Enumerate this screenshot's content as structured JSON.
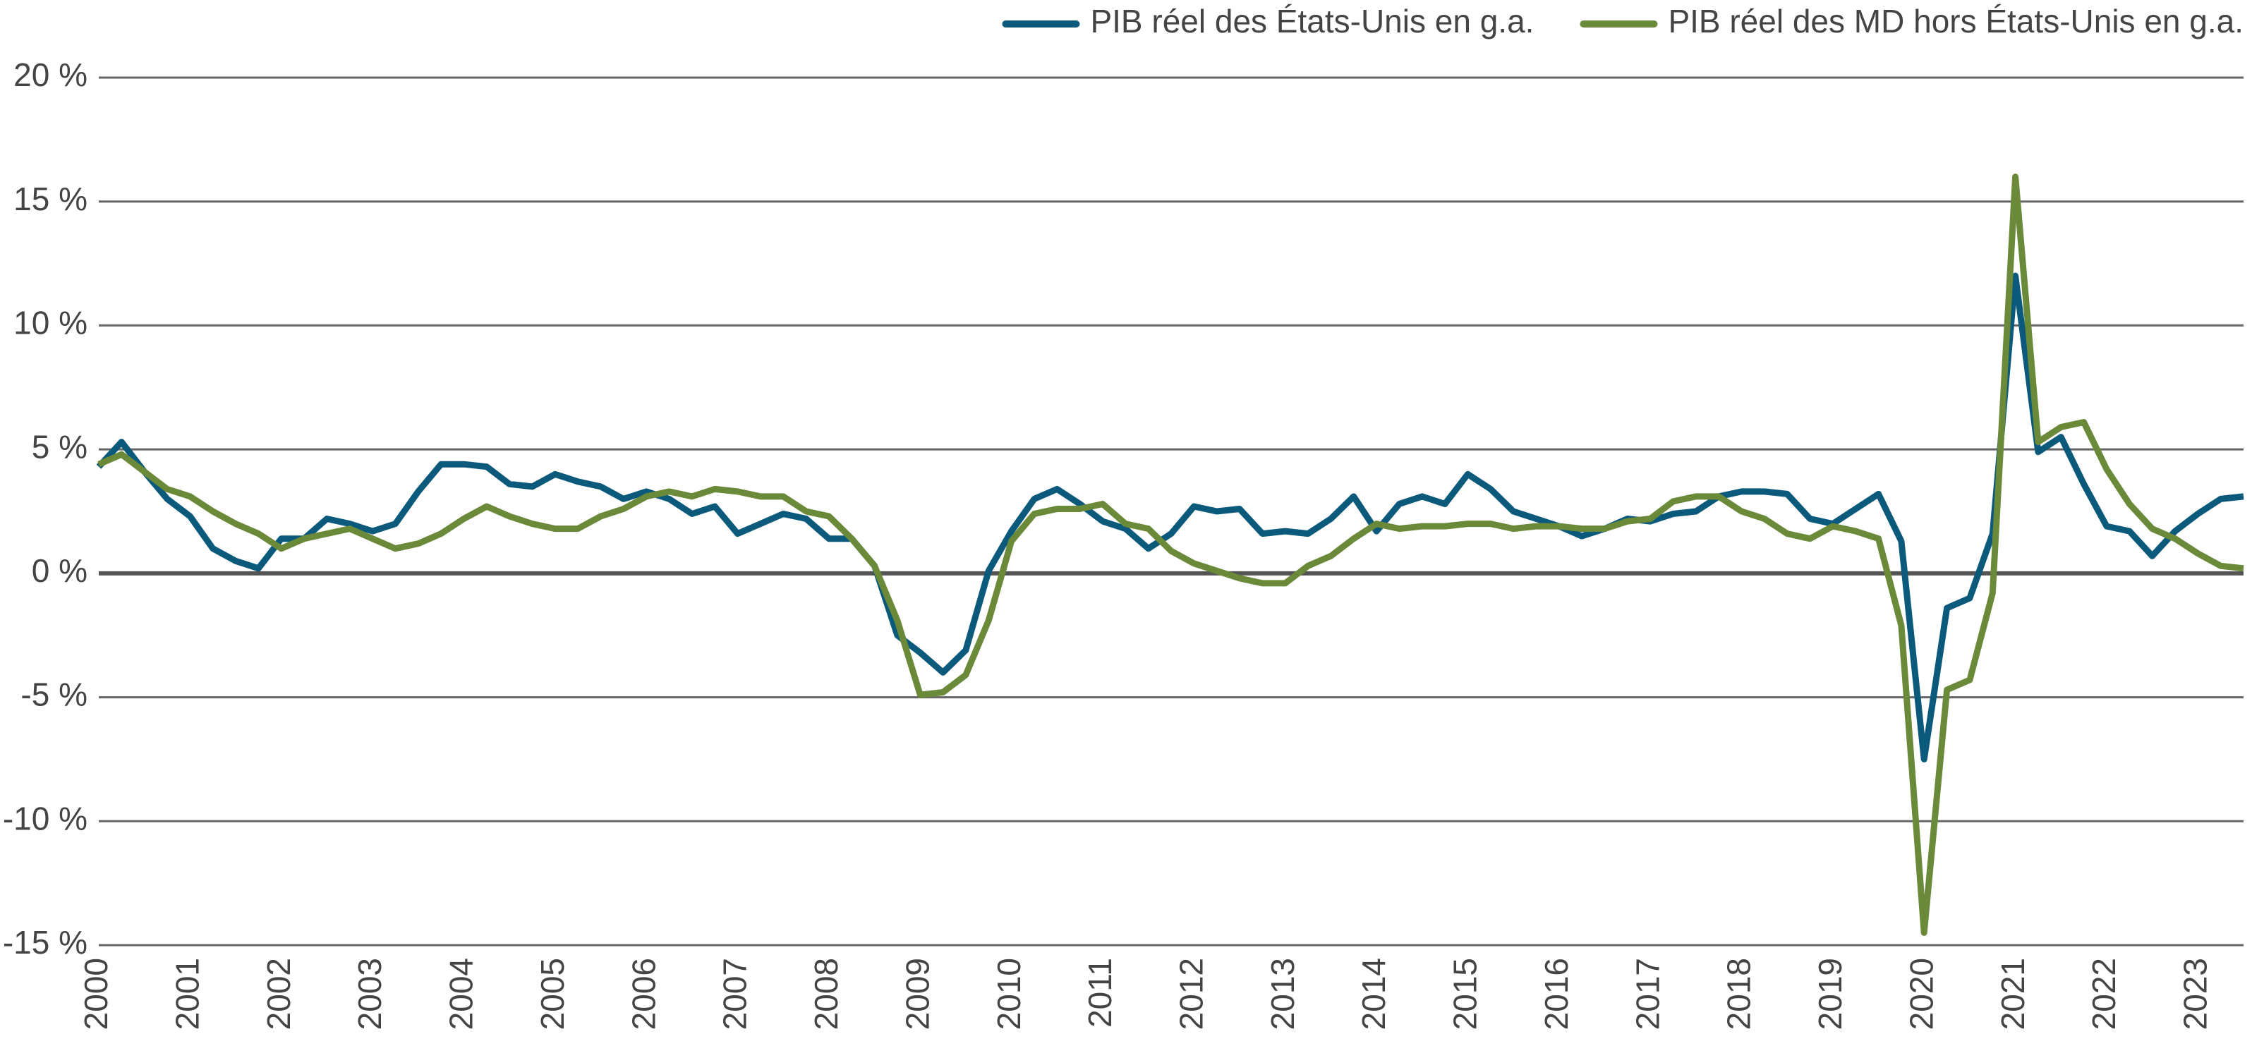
{
  "chart_data": {
    "type": "line",
    "categories": [
      "2000",
      null,
      null,
      null,
      "2001",
      null,
      null,
      null,
      "2002",
      null,
      null,
      null,
      "2003",
      null,
      null,
      null,
      "2004",
      null,
      null,
      null,
      "2005",
      null,
      null,
      null,
      "2006",
      null,
      null,
      null,
      "2007",
      null,
      null,
      null,
      "2008",
      null,
      null,
      null,
      "2009",
      null,
      null,
      null,
      "2010",
      null,
      null,
      null,
      "2011",
      null,
      null,
      null,
      "2012",
      null,
      null,
      null,
      "2013",
      null,
      null,
      null,
      "2014",
      null,
      null,
      null,
      "2015",
      null,
      null,
      null,
      "2016",
      null,
      null,
      null,
      "2017",
      null,
      null,
      null,
      "2018",
      null,
      null,
      null,
      "2019",
      null,
      null,
      null,
      "2020",
      null,
      null,
      null,
      "2021",
      null,
      null,
      null,
      "2022",
      null,
      null,
      null,
      "2023",
      null,
      null
    ],
    "series": [
      {
        "name": "PIB réel des États-Unis en g.a.",
        "color": "#0b5a7c",
        "values": [
          4.3,
          5.3,
          4.1,
          3.0,
          2.3,
          1.0,
          0.5,
          0.2,
          1.4,
          1.4,
          2.2,
          2.0,
          1.7,
          2.0,
          3.3,
          4.4,
          4.4,
          4.3,
          3.6,
          3.5,
          4.0,
          3.7,
          3.5,
          3.0,
          3.3,
          3.0,
          2.4,
          2.7,
          1.6,
          2.0,
          2.4,
          2.2,
          1.4,
          1.4,
          0.3,
          -2.5,
          -3.2,
          -4.0,
          -3.1,
          0.1,
          1.7,
          3.0,
          3.4,
          2.8,
          2.1,
          1.8,
          1.0,
          1.6,
          2.7,
          2.5,
          2.6,
          1.6,
          1.7,
          1.6,
          2.2,
          3.1,
          1.7,
          2.8,
          3.1,
          2.8,
          4.0,
          3.4,
          2.5,
          2.2,
          1.9,
          1.5,
          1.8,
          2.2,
          2.1,
          2.4,
          2.5,
          3.1,
          3.3,
          3.3,
          3.2,
          2.2,
          2.0,
          2.6,
          3.2,
          1.3,
          -7.5,
          -1.4,
          -1.0,
          1.6,
          12.0,
          4.9,
          5.5,
          3.6,
          1.9,
          1.7,
          0.7,
          1.7,
          2.4,
          3.0,
          3.1
        ]
      },
      {
        "name": "PIB réel des MD hors États-Unis en g.a.",
        "color": "#6a8a3a",
        "values": [
          4.4,
          4.8,
          4.1,
          3.4,
          3.1,
          2.5,
          2.0,
          1.6,
          1.0,
          1.4,
          1.6,
          1.8,
          1.4,
          1.0,
          1.2,
          1.6,
          2.2,
          2.7,
          2.3,
          2.0,
          1.8,
          1.8,
          2.3,
          2.6,
          3.1,
          3.3,
          3.1,
          3.4,
          3.3,
          3.1,
          3.1,
          2.5,
          2.3,
          1.4,
          0.3,
          -1.9,
          -4.9,
          -4.8,
          -4.1,
          -1.9,
          1.3,
          2.4,
          2.6,
          2.6,
          2.8,
          2.0,
          1.8,
          0.9,
          0.4,
          0.1,
          -0.2,
          -0.4,
          -0.4,
          0.3,
          0.7,
          1.4,
          2.0,
          1.8,
          1.9,
          1.9,
          2.0,
          2.0,
          1.8,
          1.9,
          1.9,
          1.8,
          1.8,
          2.1,
          2.2,
          2.9,
          3.1,
          3.1,
          2.5,
          2.2,
          1.6,
          1.4,
          1.9,
          1.7,
          1.4,
          -2.1,
          -14.5,
          -4.7,
          -4.3,
          -0.8,
          16.0,
          5.3,
          5.9,
          6.1,
          4.2,
          2.8,
          1.8,
          1.4,
          0.8,
          0.3,
          0.2
        ]
      }
    ],
    "ylim": [
      -15,
      20
    ],
    "yticks": [
      {
        "value": -15,
        "label": "-15 %"
      },
      {
        "value": -10,
        "label": "-10 %"
      },
      {
        "value": -5,
        "label": "-5 %"
      },
      {
        "value": 0,
        "label": "0 %"
      },
      {
        "value": 5,
        "label": "5 %"
      },
      {
        "value": 10,
        "label": "10 %"
      },
      {
        "value": 15,
        "label": "15 %"
      },
      {
        "value": 20,
        "label": "20 %"
      }
    ],
    "grid": true,
    "legend": "top-right"
  }
}
